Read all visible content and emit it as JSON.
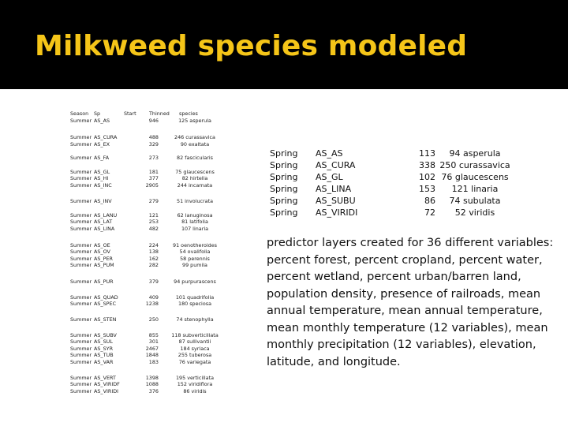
{
  "slide": {
    "title": "Milkweed species modeled",
    "colors": {
      "title": "#f5c518",
      "header_background": "#000000",
      "body_background": "#ffffff",
      "text": "#111111"
    }
  },
  "left_table": {
    "headers": {
      "season": "Season",
      "sp": "Sp",
      "start": "Start",
      "thinned": "Thinned",
      "species": "species"
    },
    "rows": [
      {
        "season": "Summer",
        "sp": "AS_AS",
        "start": "946",
        "thinned": "125 asperula"
      },
      {
        "season": "Summer",
        "sp": "AS_CURA",
        "start": "488",
        "thinned": "246 curassavica"
      },
      {
        "season": "Summer",
        "sp": "AS_EX",
        "start": "329",
        "thinned": "90 exaltata"
      },
      {
        "season": "Summer",
        "sp": "AS_FA",
        "start": "273",
        "thinned": "82 fascicularis"
      },
      {
        "season": "Summer",
        "sp": "AS_GL",
        "start": "181",
        "thinned": "75 glaucescens"
      },
      {
        "season": "Summer",
        "sp": "AS_HI",
        "start": "377",
        "thinned": "82 hirtella"
      },
      {
        "season": "Summer",
        "sp": "AS_INC",
        "start": "2905",
        "thinned": "244 incarnata"
      },
      {
        "season": "Summer",
        "sp": "AS_INV",
        "start": "279",
        "thinned": "51 involucrata"
      },
      {
        "season": "Summer",
        "sp": "AS_LANU",
        "start": "121",
        "thinned": "62 lanuginosa"
      },
      {
        "season": "Summer",
        "sp": "AS_LAT",
        "start": "253",
        "thinned": "81 latifolia"
      },
      {
        "season": "Summer",
        "sp": "AS_LINA",
        "start": "482",
        "thinned": "107 linaria"
      },
      {
        "season": "Summer",
        "sp": "AS_OE",
        "start": "224",
        "thinned": "91 oenotheroides"
      },
      {
        "season": "Summer",
        "sp": "AS_OV",
        "start": "138",
        "thinned": "54 ovalifolia"
      },
      {
        "season": "Summer",
        "sp": "AS_PER",
        "start": "162",
        "thinned": "58 perennis"
      },
      {
        "season": "Summer",
        "sp": "AS_PUM",
        "start": "282",
        "thinned": "99 pumila"
      },
      {
        "season": "Summer",
        "sp": "AS_PUR",
        "start": "379",
        "thinned": "94 purpurascens"
      },
      {
        "season": "Summer",
        "sp": "AS_QUAD",
        "start": "409",
        "thinned": "101 quadrifolia"
      },
      {
        "season": "Summer",
        "sp": "AS_SPEC",
        "start": "1238",
        "thinned": "180 speciosa"
      },
      {
        "season": "Summer",
        "sp": "AS_STEN",
        "start": "250",
        "thinned": "74 stenophylla"
      },
      {
        "season": "Summer",
        "sp": "AS_SUBV",
        "start": "855",
        "thinned": "118 subverticillata"
      },
      {
        "season": "Summer",
        "sp": "AS_SUL",
        "start": "301",
        "thinned": "87 sullivantii"
      },
      {
        "season": "Summer",
        "sp": "AS_SYR",
        "start": "2467",
        "thinned": "184 syriaca"
      },
      {
        "season": "Summer",
        "sp": "AS_TUB",
        "start": "1848",
        "thinned": "255 tuberosa"
      },
      {
        "season": "Summer",
        "sp": "AS_VAR",
        "start": "183",
        "thinned": "76 variegata"
      },
      {
        "season": "Summer",
        "sp": "AS_VERT",
        "start": "1398",
        "thinned": "195 verticillata"
      },
      {
        "season": "Summer",
        "sp": "AS_VIRIDF",
        "start": "1088",
        "thinned": "152 viridiflora"
      },
      {
        "season": "Summer",
        "sp": "AS_VIRIDI",
        "start": "376",
        "thinned": "86 viridis"
      }
    ]
  },
  "right_table": {
    "rows": [
      {
        "season": "Spring",
        "sp": "AS_AS",
        "start": "113",
        "thinned": "94 asperula"
      },
      {
        "season": "Spring",
        "sp": "AS_CURA",
        "start": "338",
        "thinned": "250 curassavica"
      },
      {
        "season": "Spring",
        "sp": "AS_GL",
        "start": "102",
        "thinned": "76 glaucescens"
      },
      {
        "season": "Spring",
        "sp": "AS_LINA",
        "start": "153",
        "thinned": "121 linaria"
      },
      {
        "season": "Spring",
        "sp": "AS_SUBU",
        "start": "86",
        "thinned": "74 subulata"
      },
      {
        "season": "Spring",
        "sp": "AS_VIRIDI",
        "start": "72",
        "thinned": "52 viridis"
      }
    ]
  },
  "description": "predictor layers created for 36 different variables: percent forest, percent cropland, percent water, percent wetland, percent urban/barren land, population density, presence of railroads, mean annual temperature, mean annual temperature, mean monthly temperature (12 variables), mean monthly precipitation (12 variables), elevation, latitude, and longitude."
}
